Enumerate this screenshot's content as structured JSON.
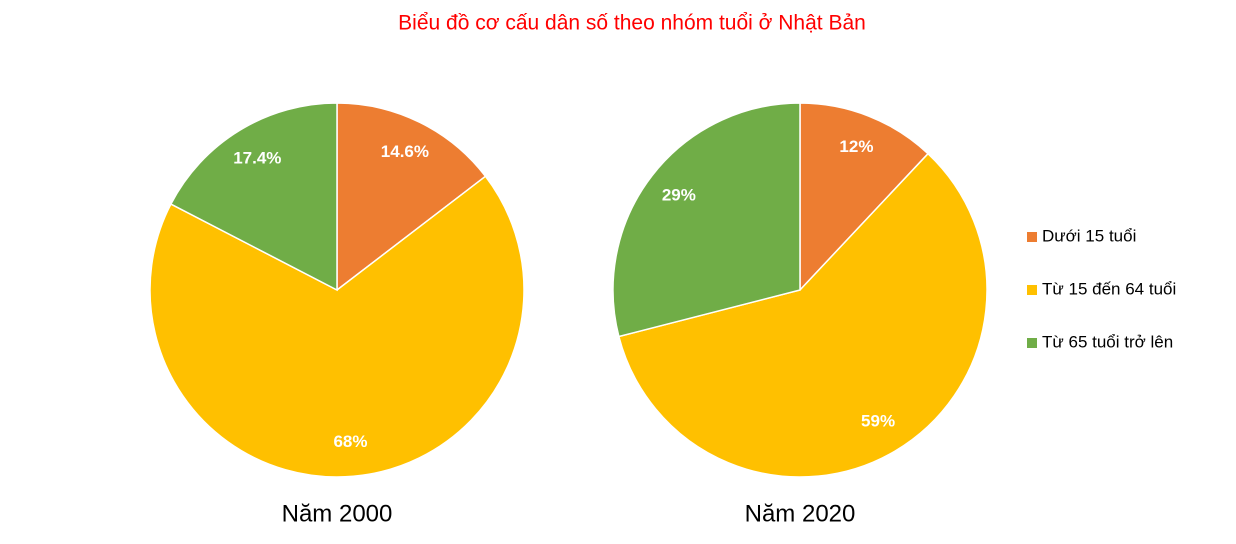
{
  "title": "Biểu đồ cơ cấu dân số theo nhóm tuổi ở Nhật Bản",
  "chart_data": [
    {
      "type": "pie",
      "title": "Năm 2000",
      "categories": [
        "Dưới 15 tuổi",
        "Từ 15 đến 64 tuổi",
        "Từ 65 tuổi trở lên"
      ],
      "values": [
        14.6,
        68,
        17.4
      ],
      "value_labels": [
        "14.6%",
        "68%",
        "17.4%"
      ],
      "colors": [
        "#ed7d31",
        "#ffc000",
        "#70ad47"
      ]
    },
    {
      "type": "pie",
      "title": "Năm 2020",
      "categories": [
        "Dưới 15 tuổi",
        "Từ 15 đến 64 tuổi",
        "Từ 65 tuổi trở lên"
      ],
      "values": [
        12,
        59,
        29
      ],
      "value_labels": [
        "12%",
        "59%",
        "29%"
      ],
      "colors": [
        "#ed7d31",
        "#ffc000",
        "#70ad47"
      ],
      "legend": "right"
    }
  ]
}
